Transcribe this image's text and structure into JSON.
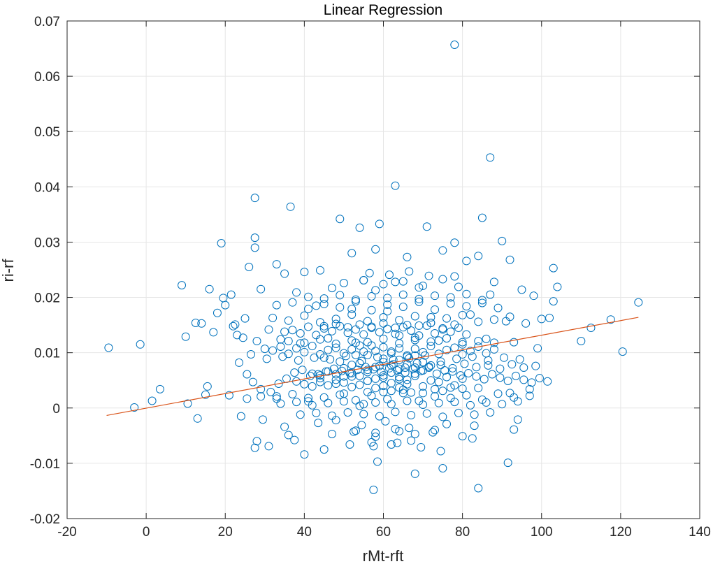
{
  "chart_data": {
    "type": "scatter",
    "title": "Linear Regression",
    "xlabel": "rMt-rft",
    "ylabel": "ri-rf",
    "xlim": [
      -20,
      140
    ],
    "ylim": [
      -0.02,
      0.07
    ],
    "xticks": [
      -20,
      0,
      20,
      40,
      60,
      80,
      100,
      120,
      140
    ],
    "yticks": [
      -0.02,
      -0.01,
      0,
      0.01,
      0.02,
      0.03,
      0.04,
      0.05,
      0.06,
      0.07
    ],
    "xtick_labels": [
      "-20",
      "0",
      "20",
      "40",
      "60",
      "80",
      "100",
      "120",
      "140"
    ],
    "ytick_labels": [
      "-0.02",
      "-0.01",
      "0",
      "0.01",
      "0.02",
      "0.03",
      "0.04",
      "0.05",
      "0.06",
      "0.07"
    ],
    "grid": true,
    "colors": {
      "points": "#0072BD",
      "fit_line": "#D95319",
      "grid": "#e6e6e6",
      "axes": "#262626"
    },
    "series": [
      {
        "kind": "points",
        "x": [
          78.0,
          87.0,
          63.0,
          27.5,
          36.5,
          49.0,
          54.0,
          59.0,
          71.0,
          85.0,
          78.0,
          90.0,
          27.5,
          19.0,
          27.5,
          52.0,
          58.0,
          66.0,
          75.0,
          81.0,
          84.0,
          92.0,
          103.0,
          26.0,
          33.0,
          35.0,
          40.0,
          44.0,
          55.0,
          63.0,
          78.0,
          88.0,
          95.0,
          104.0,
          9.0,
          16.0,
          21.5,
          29.0,
          38.0,
          47.0,
          58.0,
          69.0,
          79.0,
          87.0,
          98.0,
          103.0,
          12.5,
          22.0,
          25.0,
          31.0,
          43.0,
          52.0,
          61.0,
          72.0,
          82.0,
          91.0,
          102.0,
          112.5,
          117.5,
          124.5,
          -9.5,
          -1.5,
          10.0,
          23.0,
          28.0,
          34.0,
          39.0,
          46.0,
          53.0,
          57.0,
          64.0,
          68.0,
          74.0,
          80.0,
          86.0,
          93.0,
          99.0,
          110.0,
          120.5,
          -3.0,
          1.5,
          3.5,
          10.5,
          15.0,
          21.0,
          25.5,
          33.0,
          41.0,
          50.0,
          56.0,
          62.0,
          67.0,
          73.0,
          77.0,
          84.0,
          92.0,
          97.0,
          13.0,
          24.0,
          29.5,
          35.0,
          43.5,
          48.0,
          54.5,
          60.5,
          66.5,
          76.0,
          83.0,
          94.0,
          27.5,
          31.0,
          37.5,
          40.0,
          45.0,
          51.5,
          57.5,
          63.5,
          69.5,
          74.5,
          82.5,
          91.5,
          28.0,
          36.0,
          47.0,
          52.5,
          58.0,
          64.0,
          72.5,
          80.0,
          93.0,
          57.5,
          68.0,
          75.0,
          84.0,
          58.5,
          45.0,
          49.0,
          53.0,
          55.0,
          60.0,
          62.0,
          64.0,
          66.0,
          68.0,
          70.0,
          50.0,
          52.0,
          54.0,
          56.0,
          58.0,
          60.0,
          62.0,
          64.0,
          66.0,
          68.0,
          70.0,
          72.0,
          42.0,
          44.0,
          46.0,
          48.0,
          50.0,
          52.0,
          54.0,
          56.0,
          58.0,
          60.0,
          62.0,
          64.0,
          66.0,
          68.0,
          38.0,
          40.0,
          42.0,
          44.0,
          46.0,
          48.0,
          50.0,
          52.0,
          54.0,
          56.0,
          58.0,
          60.0,
          62.0,
          64.0,
          66.0,
          70.0,
          74.0,
          78.0,
          35.0,
          37.0,
          39.0,
          41.0,
          43.0,
          45.0,
          47.0,
          49.0,
          51.0,
          53.0,
          55.0,
          57.0,
          59.0,
          61.0,
          63.0,
          65.0,
          67.0,
          69.0,
          71.0,
          73.0,
          75.0,
          77.0,
          79.0,
          81.0,
          30.0,
          32.0,
          34.0,
          36.0,
          38.0,
          40.0,
          42.0,
          44.0,
          46.0,
          48.0,
          50.0,
          52.0,
          54.0,
          56.0,
          58.0,
          60.0,
          62.0,
          64.0,
          66.0,
          68.0,
          70.0,
          72.0,
          74.0,
          76.0,
          78.0,
          80.0,
          82.0,
          84.0,
          86.0,
          88.0,
          33.0,
          37.0,
          41.0,
          45.0,
          49.0,
          53.0,
          57.0,
          61.0,
          65.0,
          69.0,
          73.0,
          77.0,
          81.0,
          85.0,
          89.0,
          29.0,
          33.0,
          37.0,
          41.0,
          45.0,
          49.0,
          53.0,
          57.0,
          61.0,
          65.0,
          69.0,
          73.0,
          77.0,
          81.0,
          85.0,
          89.0,
          93.0,
          97.0,
          32.0,
          36.0,
          40.0,
          44.0,
          48.0,
          52.0,
          56.0,
          60.0,
          64.0,
          68.0,
          72.0,
          76.0,
          80.0,
          84.0,
          88.0,
          92.0,
          96.0,
          100.0,
          30.5,
          34.5,
          38.5,
          42.5,
          46.5,
          50.5,
          54.5,
          58.5,
          62.5,
          66.5,
          70.5,
          74.5,
          78.5,
          82.5,
          86.5,
          90.5,
          94.5,
          34.0,
          38.0,
          42.0,
          46.0,
          50.0,
          54.0,
          58.0,
          62.0,
          66.0,
          70.0,
          74.0,
          78.0,
          82.0,
          86.0,
          90.0,
          94.0,
          36.0,
          40.0,
          44.0,
          48.0,
          52.0,
          56.0,
          60.0,
          64.0,
          68.0,
          72.0,
          76.0,
          80.0,
          84.0,
          88.0,
          39.0,
          43.0,
          47.0,
          51.0,
          55.0,
          59.0,
          63.0,
          67.0,
          71.0,
          75.0,
          79.0,
          83.0,
          87.0,
          41.0,
          45.0,
          49.0,
          53.0,
          57.0,
          61.0,
          65.0,
          69.0,
          73.0,
          77.0,
          81.0,
          85.0,
          44.0,
          48.0,
          52.0,
          56.0,
          60.0,
          64.0,
          68.0,
          72.0,
          76.0,
          80.0,
          50.0,
          55.0,
          60.0,
          65.0,
          70.0,
          75.0,
          53.0,
          58.0,
          63.0,
          68.0,
          73.0,
          56.5,
          61.5,
          66.5,
          71.5,
          57.0,
          62.0,
          67.0,
          60.0,
          65.0,
          70.0,
          75.0,
          80.0,
          55.0,
          45.0,
          48.0,
          51.0,
          54.0,
          57.0,
          60.0,
          63.0,
          66.0,
          69.0,
          72.0,
          75.0,
          78.0,
          59.0,
          62.5,
          65.5,
          68.5,
          71.5,
          74.5,
          77.5,
          80.5,
          83.5,
          86.5,
          89.5,
          92.5,
          95.5,
          98.5,
          18.0,
          20.0,
          22.5,
          24.5,
          26.5,
          17.0,
          19.5,
          14.0,
          15.5,
          23.5,
          25.5,
          27.0,
          29.0,
          31.5,
          33.5,
          35.5,
          37.5,
          39.5,
          41.5,
          43.5,
          45.5,
          47.5,
          49.5,
          51.5,
          53.5,
          55.5,
          57.5,
          59.5,
          61.5,
          63.5,
          65.5,
          67.5,
          69.5,
          71.5,
          73.5,
          75.5,
          77.5,
          79.5,
          81.5,
          83.5,
          85.5,
          87.5,
          89.5,
          91.5,
          93.5,
          95.5,
          97.5,
          99.5,
          101.5
        ],
        "y": [
          0.0657,
          0.0453,
          0.0402,
          0.038,
          0.0364,
          0.0342,
          0.0326,
          0.0333,
          0.0328,
          0.0344,
          0.0299,
          0.0302,
          0.0308,
          0.0298,
          0.029,
          0.028,
          0.0287,
          0.0273,
          0.0285,
          0.0266,
          0.0275,
          0.0268,
          0.0253,
          0.0255,
          0.026,
          0.0243,
          0.0246,
          0.0249,
          0.0231,
          0.0228,
          0.0238,
          0.0228,
          0.0214,
          0.0219,
          0.0222,
          0.0215,
          0.0205,
          0.0215,
          0.0209,
          0.0217,
          0.0213,
          0.0218,
          0.0219,
          0.0205,
          0.0203,
          0.0193,
          0.0154,
          0.0148,
          0.0162,
          0.0142,
          0.0185,
          0.0179,
          0.0175,
          0.0164,
          0.0169,
          0.0157,
          0.0163,
          0.0145,
          0.016,
          0.0191,
          0.0109,
          0.0115,
          0.0129,
          0.0132,
          0.0121,
          0.0124,
          0.0117,
          0.0126,
          0.0118,
          0.0113,
          0.0131,
          0.0127,
          0.0122,
          0.0119,
          0.0125,
          0.0119,
          0.0108,
          0.0121,
          0.0102,
          0.0001,
          0.0013,
          0.0034,
          0.0008,
          0.0024,
          0.0023,
          0.0017,
          0.0021,
          0.0018,
          0.0026,
          0.0029,
          0.0031,
          0.0028,
          0.0034,
          0.0037,
          0.0036,
          0.0027,
          0.0034,
          -0.0019,
          -0.0015,
          -0.0021,
          -0.0034,
          -0.0027,
          -0.0022,
          -0.0031,
          -0.0024,
          -0.0036,
          -0.0029,
          -0.0032,
          -0.0021,
          -0.0072,
          -0.0069,
          -0.0058,
          -0.0084,
          -0.0075,
          -0.0066,
          -0.0069,
          -0.0063,
          -0.0071,
          -0.0078,
          -0.0055,
          -0.0099,
          -0.006,
          -0.0049,
          -0.0047,
          -0.0043,
          -0.0052,
          -0.0042,
          -0.0044,
          -0.0051,
          -0.0039,
          -0.0148,
          -0.0119,
          -0.0109,
          -0.0145,
          -0.0097,
          0.0091,
          0.0084,
          0.0096,
          0.0102,
          0.0089,
          0.0099,
          0.0087,
          0.0093,
          0.0095,
          0.0083,
          0.0072,
          0.0078,
          0.0081,
          0.0069,
          0.0074,
          0.0083,
          0.0077,
          0.0071,
          0.0079,
          0.0073,
          0.0068,
          0.0077,
          0.0062,
          0.0059,
          0.0066,
          0.0061,
          0.0057,
          0.0063,
          0.0058,
          0.0065,
          0.0053,
          0.0059,
          0.0064,
          0.0056,
          0.0051,
          0.0062,
          0.0048,
          0.0043,
          0.0039,
          0.0047,
          0.0041,
          0.0044,
          0.0046,
          0.0038,
          0.0042,
          0.0049,
          0.0036,
          0.004,
          0.0045,
          0.0037,
          0.0043,
          0.0039,
          0.0047,
          0.0041,
          0.0138,
          0.0141,
          0.0135,
          0.0147,
          0.0132,
          0.0144,
          0.0139,
          0.0148,
          0.0136,
          0.0142,
          0.0133,
          0.0145,
          0.0137,
          0.0143,
          0.0134,
          0.0146,
          0.014,
          0.0131,
          0.0149,
          0.0135,
          0.0142,
          0.0138,
          0.0145,
          0.0133,
          0.0107,
          0.0104,
          0.0111,
          0.0098,
          0.0108,
          0.0101,
          0.0112,
          0.0097,
          0.0105,
          0.0109,
          0.0099,
          0.0106,
          0.0113,
          0.0096,
          0.0103,
          0.011,
          0.0102,
          0.0108,
          0.0095,
          0.0107,
          0.0101,
          0.0112,
          0.0098,
          0.0105,
          0.0109,
          0.0097,
          0.0103,
          0.0111,
          0.0099,
          0.0106,
          0.0186,
          0.0191,
          0.0179,
          0.0188,
          0.0182,
          0.0193,
          0.0177,
          0.0187,
          0.0183,
          0.0192,
          0.0178,
          0.0189,
          0.0184,
          0.019,
          0.0181,
          0.0021,
          0.0017,
          0.0025,
          0.0012,
          0.0019,
          0.0024,
          0.0014,
          0.0022,
          0.0016,
          0.0027,
          0.0013,
          0.0021,
          0.0018,
          0.0023,
          0.0015,
          0.0026,
          0.0019,
          0.0022,
          0.0163,
          0.0158,
          0.0167,
          0.0155,
          0.0161,
          0.0169,
          0.0157,
          0.0164,
          0.0159,
          0.0166,
          0.0154,
          0.0162,
          0.0168,
          0.0156,
          0.016,
          0.0165,
          0.0153,
          0.0161,
          0.0089,
          0.0093,
          0.0086,
          0.0091,
          0.0088,
          0.0094,
          0.0085,
          0.0092,
          0.0087,
          0.009,
          0.0095,
          0.0084,
          0.0089,
          0.0093,
          0.0086,
          0.0091,
          0.0088,
          0.0008,
          0.0011,
          0.0005,
          0.0009,
          0.0012,
          0.0004,
          0.001,
          0.0007,
          0.0013,
          0.0006,
          0.0009,
          0.0011,
          0.0005,
          0.001,
          0.0007,
          0.0012,
          0.0121,
          0.0118,
          0.0124,
          0.0116,
          0.0122,
          0.0119,
          0.0125,
          0.0117,
          0.0123,
          0.012,
          0.0126,
          0.0115,
          0.0121,
          0.0118,
          -0.0012,
          -0.0009,
          -0.0014,
          -0.0008,
          -0.0011,
          -0.0015,
          -0.0007,
          -0.0013,
          -0.001,
          -0.0016,
          -0.0009,
          -0.0012,
          -0.0008,
          0.0201,
          0.0198,
          0.0204,
          0.0196,
          0.0202,
          0.0199,
          0.0205,
          0.0197,
          0.0203,
          0.02,
          0.0206,
          0.0195,
          0.0054,
          0.0051,
          0.0057,
          0.0049,
          0.0055,
          0.0052,
          0.0058,
          0.005,
          0.0056,
          0.0053,
          0.0226,
          0.0231,
          0.0224,
          0.0229,
          0.0221,
          0.0233,
          -0.0041,
          -0.0045,
          -0.0038,
          -0.0047,
          -0.004,
          0.0244,
          0.0241,
          0.0247,
          0.0239,
          -0.0062,
          -0.0066,
          -0.0059,
          0.0029,
          0.0033,
          0.0027,
          0.0031,
          0.0035,
          0.0007,
          0.0148,
          0.0152,
          0.0146,
          0.0151,
          0.0147,
          0.0153,
          0.0145,
          0.015,
          0.0149,
          0.0154,
          0.0144,
          0.0151,
          0.0076,
          0.0079,
          0.0073,
          0.0081,
          0.0075,
          0.0078,
          0.0072,
          0.008,
          0.0074,
          0.0077,
          0.0071,
          0.0079,
          0.0073,
          0.0076,
          0.0172,
          0.0186,
          0.0151,
          0.0127,
          0.0097,
          0.0137,
          0.0199,
          0.0153,
          0.0039,
          0.0082,
          0.0061,
          0.0047,
          0.0034,
          0.0029,
          0.0044,
          0.0053,
          0.0064,
          0.0069,
          0.0058,
          0.0061,
          0.0066,
          0.0071,
          0.0067,
          0.0063,
          0.0069,
          0.0074,
          0.007,
          0.0065,
          0.0072,
          0.0068,
          0.0064,
          0.0071,
          0.0067,
          0.0073,
          0.0062,
          0.0068,
          0.0066,
          0.0059,
          0.0063,
          0.0057,
          0.0052,
          0.0061,
          0.0055,
          0.0049,
          0.0058,
          0.0051,
          0.0046,
          0.0054,
          0.0048
        ]
      },
      {
        "kind": "fit_line",
        "x": [
          -10,
          124.5
        ],
        "y": [
          -0.00135,
          0.0164
        ]
      }
    ]
  }
}
